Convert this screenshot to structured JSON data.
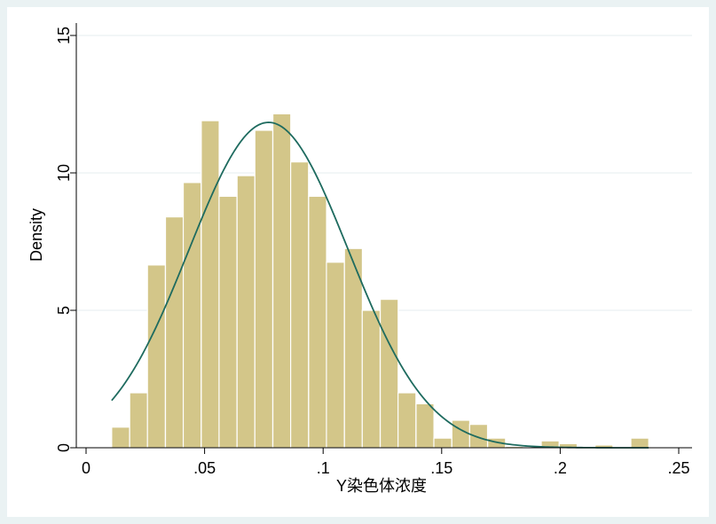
{
  "chart_data": {
    "type": "histogram",
    "title": "",
    "xlabel": "Y染色体浓度",
    "ylabel": "Density",
    "xlim": [
      0,
      0.25
    ],
    "ylim": [
      0,
      15
    ],
    "x_ticks": [
      {
        "value": 0,
        "label": "0"
      },
      {
        "value": 0.05,
        "label": ".05"
      },
      {
        "value": 0.1,
        "label": ".1"
      },
      {
        "value": 0.15,
        "label": ".15"
      },
      {
        "value": 0.2,
        "label": ".2"
      },
      {
        "value": 0.25,
        "label": ".25"
      }
    ],
    "y_ticks": [
      {
        "value": 0,
        "label": "0"
      },
      {
        "value": 5,
        "label": "5"
      },
      {
        "value": 10,
        "label": "10"
      },
      {
        "value": 15,
        "label": "15"
      }
    ],
    "grid": true,
    "bin_width": 0.00755,
    "bins": [
      {
        "x_start": 0.0108,
        "density": 0.75
      },
      {
        "x_start": 0.0184,
        "density": 2.0
      },
      {
        "x_start": 0.0259,
        "density": 6.65
      },
      {
        "x_start": 0.0335,
        "density": 8.4
      },
      {
        "x_start": 0.041,
        "density": 9.65
      },
      {
        "x_start": 0.0486,
        "density": 11.9
      },
      {
        "x_start": 0.0561,
        "density": 9.15
      },
      {
        "x_start": 0.0637,
        "density": 9.9
      },
      {
        "x_start": 0.0712,
        "density": 11.55
      },
      {
        "x_start": 0.0788,
        "density": 12.15
      },
      {
        "x_start": 0.0863,
        "density": 10.4
      },
      {
        "x_start": 0.0939,
        "density": 9.15
      },
      {
        "x_start": 0.1014,
        "density": 6.75
      },
      {
        "x_start": 0.109,
        "density": 7.25
      },
      {
        "x_start": 0.1165,
        "density": 5.0
      },
      {
        "x_start": 0.1241,
        "density": 5.4
      },
      {
        "x_start": 0.1316,
        "density": 2.0
      },
      {
        "x_start": 0.1392,
        "density": 1.6
      },
      {
        "x_start": 0.1467,
        "density": 0.35
      },
      {
        "x_start": 0.1543,
        "density": 1.0
      },
      {
        "x_start": 0.1618,
        "density": 0.85
      },
      {
        "x_start": 0.1694,
        "density": 0.35
      },
      {
        "x_start": 0.1769,
        "density": 0.05
      },
      {
        "x_start": 0.1845,
        "density": 0.0
      },
      {
        "x_start": 0.192,
        "density": 0.25
      },
      {
        "x_start": 0.1996,
        "density": 0.15
      },
      {
        "x_start": 0.2071,
        "density": 0.0
      },
      {
        "x_start": 0.2147,
        "density": 0.1
      },
      {
        "x_start": 0.2222,
        "density": 0.0
      },
      {
        "x_start": 0.2298,
        "density": 0.35
      }
    ],
    "normal_curve": {
      "mean": 0.077,
      "sd": 0.0337,
      "x_range": [
        0.0108,
        0.2373
      ]
    },
    "colors": {
      "background": "#eaf2f3",
      "plot_background": "#ffffff",
      "bar_fill": "#d3c689",
      "bar_stroke": "#ffffff",
      "curve": "#1e6b5f",
      "grid": "#e6eeef",
      "axis": "#000000"
    }
  }
}
